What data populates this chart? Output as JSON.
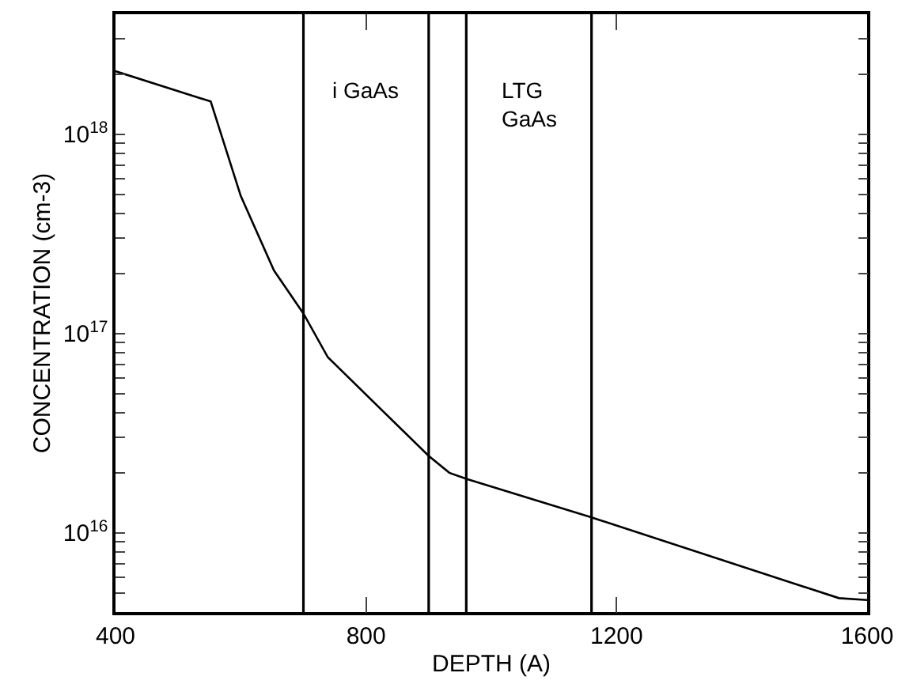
{
  "chart_data": {
    "type": "line",
    "xlabel": "DEPTH (A)",
    "ylabel": "CONCENTRATION (cm-3)",
    "x": [
      400,
      552,
      600,
      653,
      700,
      739,
      900,
      933,
      961,
      1158,
      1555,
      1600
    ],
    "values": [
      2.07e+18,
      1.46e+18,
      4.9e+17,
      2.07e+17,
      1.26e+17,
      7.6e+16,
      2.43e+16,
      2e+16,
      1.86e+16,
      1.2e+16,
      4700000000000000.0,
      4600000000000000.0
    ],
    "color": "#000000",
    "log": true,
    "marker": "none",
    "line_style": "solid",
    "xlim": [
      400,
      1600
    ],
    "xticks": [
      400,
      800,
      1200,
      1600
    ],
    "ylim": [
      4000000000000000.0,
      4e+18
    ],
    "yticks": [
      {
        "value": 4000000000000000.0,
        "label": null
      },
      {
        "value": 5000000000000000.0,
        "label": null
      },
      {
        "value": 6000000000000000.0,
        "label": null
      },
      {
        "value": 7000000000000000.0,
        "label": null
      },
      {
        "value": 8000000000000000.0,
        "label": null
      },
      {
        "value": 9000000000000000.0,
        "label": null
      },
      {
        "value": 1e+16,
        "label": "10$^{16}$"
      },
      {
        "value": 2e+16,
        "label": null
      },
      {
        "value": 3e+16,
        "label": null
      },
      {
        "value": 4e+16,
        "label": null
      },
      {
        "value": 5e+16,
        "label": null
      },
      {
        "value": 6e+16,
        "label": null
      },
      {
        "value": 7e+16,
        "label": null
      },
      {
        "value": 8e+16,
        "label": null
      },
      {
        "value": 9e+16,
        "label": null
      },
      {
        "value": 1e+17,
        "label": "10$^{17}$"
      },
      {
        "value": 2e+17,
        "label": null
      },
      {
        "value": 3e+17,
        "label": null
      },
      {
        "value": 4e+17,
        "label": null
      },
      {
        "value": 5e+17,
        "label": null
      },
      {
        "value": 6e+17,
        "label": null
      },
      {
        "value": 7e+17,
        "label": null
      },
      {
        "value": 8e+17,
        "label": null
      },
      {
        "value": 9e+17,
        "label": null
      },
      {
        "value": 1e+18,
        "label": "10$^{18}$"
      },
      {
        "value": 2e+18,
        "label": null
      },
      {
        "value": 3e+18,
        "label": null
      },
      {
        "value": 4e+18,
        "label": null
      }
    ],
    "ref_lines": [
      {
        "axis": "x",
        "value": 700,
        "color": "#000000"
      },
      {
        "axis": "x",
        "value": 900,
        "color": "#000000"
      },
      {
        "axis": "x",
        "value": 960,
        "color": "#000000"
      },
      {
        "axis": "x",
        "value": 1160,
        "color": "#000000"
      }
    ],
    "annotations": [
      "i GaAs",
      "LTG\nGaAs"
    ]
  }
}
